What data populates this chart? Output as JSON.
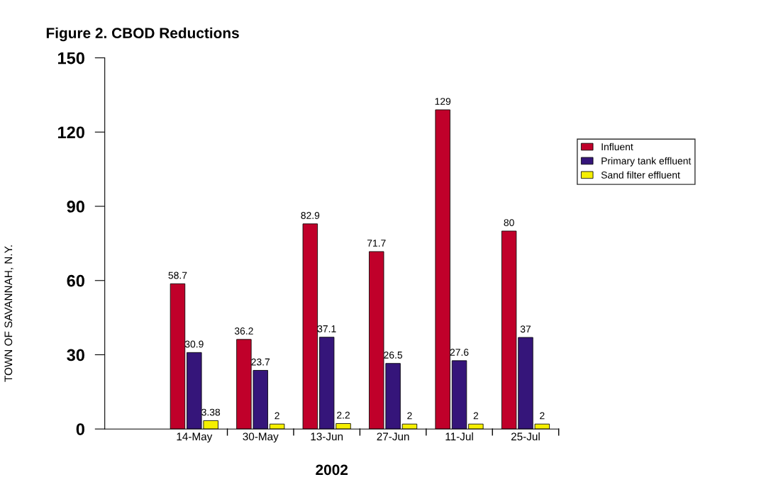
{
  "chart_data": {
    "type": "bar",
    "title": "Figure 2. CBOD Reductions",
    "xlabel": "2002",
    "categories": [
      "14-May",
      "30-May",
      "13-Jun",
      "27-Jun",
      "11-Jul",
      "25-Jul"
    ],
    "series": [
      {
        "name": "Influent",
        "color": "#c0002a",
        "values": [
          58.7,
          36.2,
          82.9,
          71.7,
          129,
          80
        ]
      },
      {
        "name": "Primary tank effluent",
        "color": "#35157a",
        "values": [
          30.9,
          23.7,
          37.1,
          26.5,
          27.6,
          37
        ]
      },
      {
        "name": "Sand filter effluent",
        "color": "#f5ef00",
        "values": [
          3.38,
          2,
          2.2,
          2,
          2,
          2
        ]
      }
    ],
    "ylim": [
      0,
      150
    ],
    "yticks": [
      0,
      30,
      60,
      90,
      120,
      150
    ],
    "grid": false,
    "legend": "right",
    "data_labels": true,
    "annotations": [
      "TOWN OF SAVANNAH, N.Y."
    ]
  }
}
